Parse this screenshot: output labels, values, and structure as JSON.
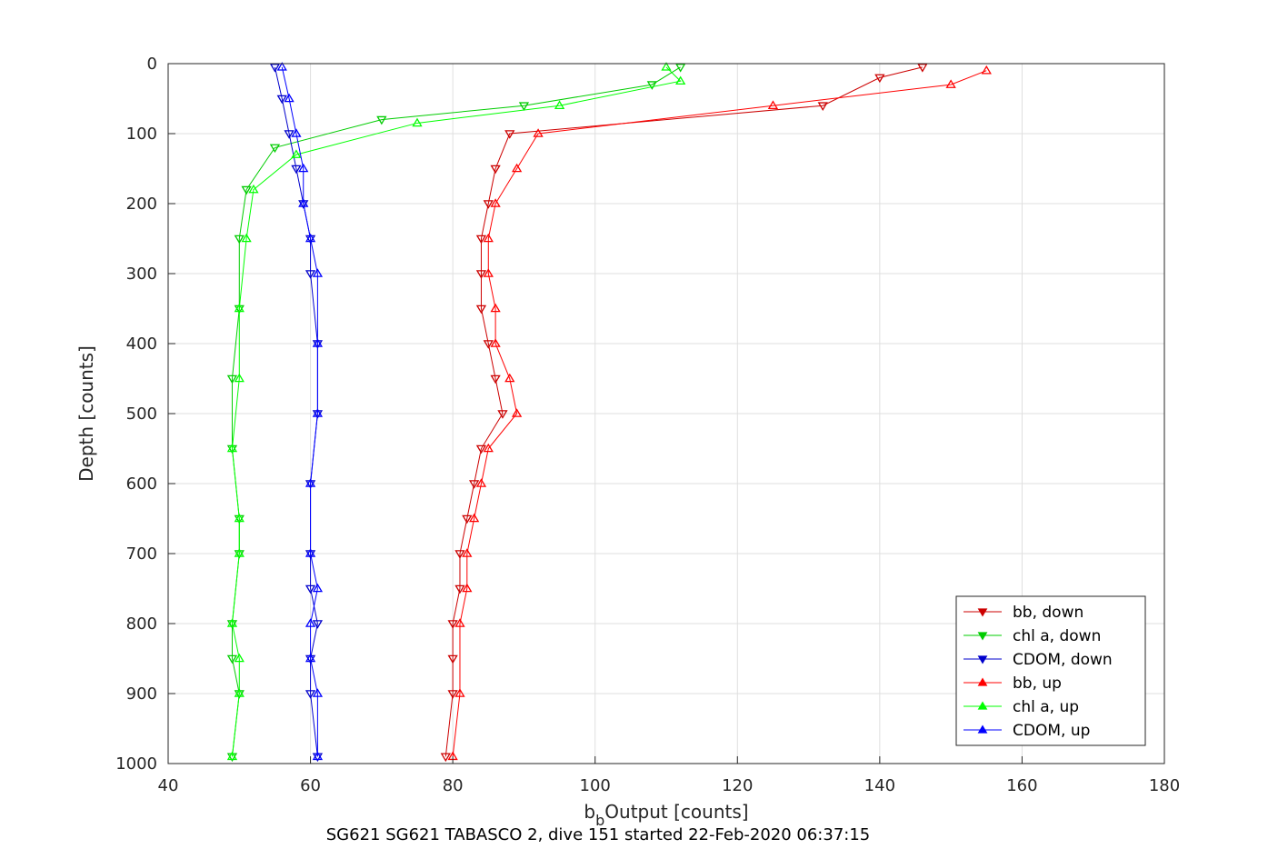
{
  "chart_data": {
    "type": "scatter",
    "xlabel_main": "b",
    "xlabel_sub": "b",
    "xlabel_rest": "Output [counts]",
    "ylabel": "Depth [counts]",
    "footer": "SG621 SG621 TABASCO 2, dive 151 started 22-Feb-2020 06:37:15",
    "xlim": [
      40,
      180
    ],
    "ylim": [
      0,
      1000
    ],
    "y_reversed": true,
    "x_ticks": [
      40,
      60,
      80,
      100,
      120,
      140,
      160,
      180
    ],
    "y_ticks": [
      0,
      100,
      200,
      300,
      400,
      500,
      600,
      700,
      800,
      900,
      1000
    ],
    "grid": true,
    "legend_position": "bottom-right",
    "series": [
      {
        "name": "bb, down",
        "color": "#cc0000",
        "marker": "triangle-down",
        "x": [
          146,
          140,
          132,
          88,
          86,
          85,
          84,
          84,
          84,
          85,
          86,
          87,
          84,
          83,
          82,
          81,
          81,
          80,
          80,
          80,
          79
        ],
        "y": [
          5,
          20,
          60,
          100,
          150,
          200,
          250,
          300,
          350,
          400,
          450,
          500,
          550,
          600,
          650,
          700,
          750,
          800,
          850,
          900,
          990
        ]
      },
      {
        "name": "chl a, down",
        "color": "#00cc00",
        "marker": "triangle-down",
        "x": [
          112,
          108,
          90,
          70,
          55,
          51,
          50,
          50,
          49,
          49,
          50,
          50,
          49,
          49,
          50,
          49
        ],
        "y": [
          5,
          30,
          60,
          80,
          120,
          180,
          250,
          350,
          450,
          550,
          650,
          700,
          800,
          850,
          900,
          990
        ]
      },
      {
        "name": "CDOM, down",
        "color": "#0000cc",
        "marker": "triangle-down",
        "x": [
          55,
          56,
          57,
          58,
          59,
          60,
          60,
          61,
          61,
          60,
          60,
          60,
          61,
          60,
          60,
          61
        ],
        "y": [
          5,
          50,
          100,
          150,
          200,
          250,
          300,
          400,
          500,
          600,
          700,
          750,
          800,
          850,
          900,
          990
        ]
      },
      {
        "name": "bb, up",
        "color": "#ff0000",
        "marker": "triangle-up",
        "x": [
          155,
          150,
          125,
          92,
          89,
          86,
          85,
          85,
          86,
          86,
          88,
          89,
          85,
          84,
          83,
          82,
          82,
          81,
          81,
          80
        ],
        "y": [
          10,
          30,
          60,
          100,
          150,
          200,
          250,
          300,
          350,
          400,
          450,
          500,
          550,
          600,
          650,
          700,
          750,
          800,
          900,
          990
        ]
      },
      {
        "name": "chl a, up",
        "color": "#00ff00",
        "marker": "triangle-up",
        "x": [
          110,
          112,
          95,
          75,
          58,
          52,
          51,
          50,
          50,
          49,
          50,
          50,
          49,
          50,
          50,
          49
        ],
        "y": [
          5,
          25,
          60,
          85,
          130,
          180,
          250,
          350,
          450,
          550,
          650,
          700,
          800,
          850,
          900,
          990
        ]
      },
      {
        "name": "CDOM, up",
        "color": "#0000ff",
        "marker": "triangle-up",
        "x": [
          56,
          57,
          58,
          59,
          59,
          60,
          61,
          61,
          61,
          60,
          60,
          61,
          60,
          60,
          61,
          61
        ],
        "y": [
          5,
          50,
          100,
          150,
          200,
          250,
          300,
          400,
          500,
          600,
          700,
          750,
          800,
          850,
          900,
          990
        ]
      }
    ]
  }
}
